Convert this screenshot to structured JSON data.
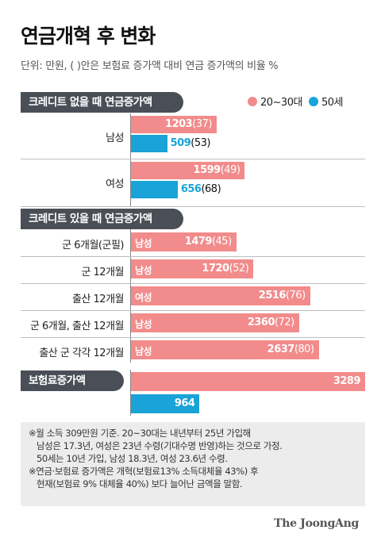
{
  "title": "연금개혁 후 변화",
  "subtitle": "단위: 만원, ( )안은 보험료 증가액 대비 연금 증가액의 비율 %",
  "legend": [
    {
      "label": "20~30대",
      "color": "#f28b8b"
    },
    {
      "label": "50세",
      "color": "#1aa3d8"
    }
  ],
  "chart_data": {
    "type": "bar",
    "orientation": "horizontal",
    "xlim": [
      0,
      3289
    ],
    "sections": [
      {
        "header": "크레디트 없을 때 연금증가액",
        "groups": [
          {
            "label": "남성",
            "bars": [
              {
                "series": "20~30대",
                "value": 1203,
                "ratio": "37"
              },
              {
                "series": "50세",
                "value": 509,
                "ratio": "53"
              }
            ]
          },
          {
            "label": "여성",
            "bars": [
              {
                "series": "20~30대",
                "value": 1599,
                "ratio": "49"
              },
              {
                "series": "50세",
                "value": 656,
                "ratio": "68"
              }
            ]
          }
        ]
      },
      {
        "header": "크레디트 있을 때 연금증가액",
        "groups": [
          {
            "label": "군 6개월(군필)",
            "bars": [
              {
                "series": "20~30대",
                "tag": "남성",
                "value": 1479,
                "ratio": "45"
              }
            ]
          },
          {
            "label": "군 12개월",
            "bars": [
              {
                "series": "20~30대",
                "tag": "남성",
                "value": 1720,
                "ratio": "52"
              }
            ]
          },
          {
            "label": "출산 12개월",
            "bars": [
              {
                "series": "20~30대",
                "tag": "여성",
                "value": 2516,
                "ratio": "76"
              }
            ]
          },
          {
            "label": "군 6개월, 출산 12개월",
            "bars": [
              {
                "series": "20~30대",
                "tag": "남성",
                "value": 2360,
                "ratio": "72"
              }
            ]
          },
          {
            "label": "출산 군 각각 12개월",
            "bars": [
              {
                "series": "20~30대",
                "tag": "남성",
                "value": 2637,
                "ratio": "80"
              }
            ]
          }
        ]
      },
      {
        "header": "보험료증가액",
        "groups": [
          {
            "label": "",
            "bars": [
              {
                "series": "20~30대",
                "value": 3289,
                "ratio": null
              },
              {
                "series": "50세",
                "value": 964,
                "ratio": null
              }
            ]
          }
        ]
      }
    ]
  },
  "notes": [
    "※월 소득 309만원 기준. 20~30대는 내년부터 25년 가입해",
    "남성은 17.3년, 여성은 23년 수령(기대수명 반영)하는 것으로 가정.",
    "50세는 10년 가입, 남성 18.3년, 여성 23.6년 수령.",
    "※연금·보험료 증가액은 개혁(보험료13% 소득대체율 43%) 후",
    "현재(보험료 9% 대체율 40%) 보다 늘어난 금액을 말함."
  ],
  "source": "The JoongAng"
}
